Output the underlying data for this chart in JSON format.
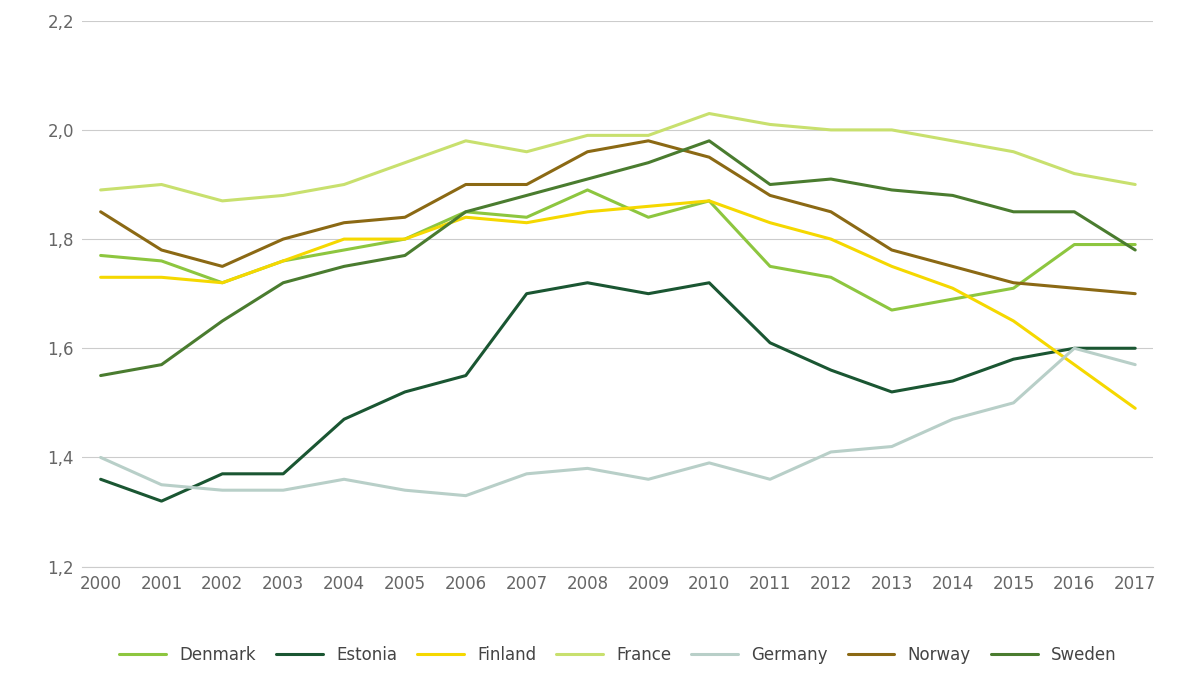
{
  "years": [
    2000,
    2001,
    2002,
    2003,
    2004,
    2005,
    2006,
    2007,
    2008,
    2009,
    2010,
    2011,
    2012,
    2013,
    2014,
    2015,
    2016,
    2017
  ],
  "series": {
    "Denmark": [
      1.77,
      1.76,
      1.72,
      1.76,
      1.78,
      1.8,
      1.85,
      1.84,
      1.89,
      1.84,
      1.87,
      1.75,
      1.73,
      1.67,
      1.69,
      1.71,
      1.79,
      1.79
    ],
    "Estonia": [
      1.36,
      1.32,
      1.37,
      1.37,
      1.47,
      1.52,
      1.55,
      1.7,
      1.72,
      1.7,
      1.72,
      1.61,
      1.56,
      1.52,
      1.54,
      1.58,
      1.6,
      1.6
    ],
    "Finland": [
      1.73,
      1.73,
      1.72,
      1.76,
      1.8,
      1.8,
      1.84,
      1.83,
      1.85,
      1.86,
      1.87,
      1.83,
      1.8,
      1.75,
      1.71,
      1.65,
      1.57,
      1.49
    ],
    "France": [
      1.89,
      1.9,
      1.87,
      1.88,
      1.9,
      1.94,
      1.98,
      1.96,
      1.99,
      1.99,
      2.03,
      2.01,
      2.0,
      2.0,
      1.98,
      1.96,
      1.92,
      1.9
    ],
    "Germany": [
      1.4,
      1.35,
      1.34,
      1.34,
      1.36,
      1.34,
      1.33,
      1.37,
      1.38,
      1.36,
      1.39,
      1.36,
      1.41,
      1.42,
      1.47,
      1.5,
      1.6,
      1.57
    ],
    "Norway": [
      1.85,
      1.78,
      1.75,
      1.8,
      1.83,
      1.84,
      1.9,
      1.9,
      1.96,
      1.98,
      1.95,
      1.88,
      1.85,
      1.78,
      1.75,
      1.72,
      1.71,
      1.7
    ],
    "Sweden": [
      1.55,
      1.57,
      1.65,
      1.72,
      1.75,
      1.77,
      1.85,
      1.88,
      1.91,
      1.94,
      1.98,
      1.9,
      1.91,
      1.89,
      1.88,
      1.85,
      1.85,
      1.78
    ]
  },
  "colors": {
    "Denmark": "#8dc63f",
    "Estonia": "#1a5632",
    "Finland": "#f5d800",
    "France": "#c8e06e",
    "Germany": "#b8cfc8",
    "Norway": "#8b6914",
    "Sweden": "#4a7c2f"
  },
  "ylim": [
    1.2,
    2.2
  ],
  "yticks": [
    1.2,
    1.4,
    1.6,
    1.8,
    2.0,
    2.2
  ],
  "ytick_labels": [
    "1,2",
    "1,4",
    "1,6",
    "1,8",
    "2,0",
    "2,2"
  ],
  "background_color": "#ffffff",
  "grid_color": "#cccccc",
  "line_width": 2.2,
  "tick_fontsize": 12,
  "legend_fontsize": 12
}
